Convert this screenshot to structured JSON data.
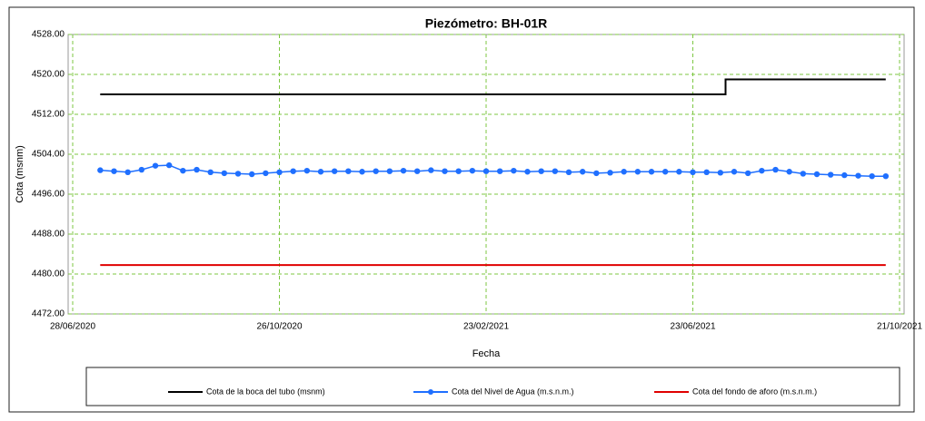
{
  "chart_data": {
    "type": "line",
    "title": "Piezómetro: BH-01R",
    "xlabel": "Fecha",
    "ylabel": "Cota (msnm)",
    "xlim": [
      "2020-06-28",
      "2021-10-21"
    ],
    "xticks": [
      {
        "value": "2020-06-28",
        "label": "28/06/2020"
      },
      {
        "value": "2020-10-26",
        "label": "26/10/2020"
      },
      {
        "value": "2021-02-23",
        "label": "23/02/2021"
      },
      {
        "value": "2021-06-23",
        "label": "23/06/2021"
      },
      {
        "value": "2021-10-21",
        "label": "21/10/2021"
      }
    ],
    "ylim": [
      4472,
      4528
    ],
    "yticks": [
      {
        "value": 4472,
        "label": "4472.00"
      },
      {
        "value": 4480,
        "label": "4480.00"
      },
      {
        "value": 4488,
        "label": "4488.00"
      },
      {
        "value": 4496,
        "label": "4496.00"
      },
      {
        "value": 4504,
        "label": "4504.00"
      },
      {
        "value": 4512,
        "label": "4512.00"
      },
      {
        "value": 4520,
        "label": "4520.00"
      },
      {
        "value": 4528,
        "label": "4528.00"
      }
    ],
    "grid": true,
    "legend": "bottom",
    "series": [
      {
        "name": "Cota de la boca del tubo (msnm)",
        "color": "#000000",
        "marker": false,
        "x": [
          "2020-07-14",
          "2021-07-12",
          "2021-07-12",
          "2021-10-13"
        ],
        "values": [
          4516,
          4516,
          4519,
          4519
        ]
      },
      {
        "name": "Cota del Nivel de Agua (m.s.n.m.)",
        "color": "#1f6fff",
        "marker": true,
        "x": [
          "2020-07-14",
          "2020-07-22",
          "2020-07-30",
          "2020-08-07",
          "2020-08-15",
          "2020-08-23",
          "2020-08-31",
          "2020-09-08",
          "2020-09-16",
          "2020-09-24",
          "2020-10-02",
          "2020-10-10",
          "2020-10-18",
          "2020-10-26",
          "2020-11-03",
          "2020-11-11",
          "2020-11-19",
          "2020-11-27",
          "2020-12-05",
          "2020-12-13",
          "2020-12-21",
          "2020-12-29",
          "2021-01-06",
          "2021-01-14",
          "2021-01-22",
          "2021-01-30",
          "2021-02-07",
          "2021-02-15",
          "2021-02-23",
          "2021-03-03",
          "2021-03-11",
          "2021-03-19",
          "2021-03-27",
          "2021-04-04",
          "2021-04-12",
          "2021-04-20",
          "2021-04-28",
          "2021-05-06",
          "2021-05-14",
          "2021-05-22",
          "2021-05-30",
          "2021-06-07",
          "2021-06-15",
          "2021-06-23",
          "2021-07-01",
          "2021-07-09",
          "2021-07-17",
          "2021-07-25",
          "2021-08-02",
          "2021-08-10",
          "2021-08-18",
          "2021-08-26",
          "2021-09-03",
          "2021-09-11",
          "2021-09-19",
          "2021-09-27",
          "2021-10-05",
          "2021-10-13"
        ],
        "values": [
          4500.8,
          4500.6,
          4500.4,
          4500.9,
          4501.7,
          4501.8,
          4500.7,
          4500.9,
          4500.4,
          4500.2,
          4500.1,
          4500.0,
          4500.2,
          4500.4,
          4500.6,
          4500.7,
          4500.5,
          4500.6,
          4500.6,
          4500.5,
          4500.6,
          4500.6,
          4500.7,
          4500.6,
          4500.8,
          4500.6,
          4500.6,
          4500.7,
          4500.6,
          4500.6,
          4500.7,
          4500.5,
          4500.6,
          4500.6,
          4500.4,
          4500.5,
          4500.2,
          4500.3,
          4500.5,
          4500.5,
          4500.5,
          4500.5,
          4500.5,
          4500.4,
          4500.4,
          4500.3,
          4500.5,
          4500.2,
          4500.7,
          4500.9,
          4500.5,
          4500.1,
          4500.0,
          4499.9,
          4499.8,
          4499.7,
          4499.6,
          4499.6
        ]
      },
      {
        "name": "Cota del fondo de aforo (m.s.n.m.)",
        "color": "#e00000",
        "marker": false,
        "x": [
          "2020-07-14",
          "2021-10-13"
        ],
        "values": [
          4481.8,
          4481.8
        ]
      }
    ]
  }
}
